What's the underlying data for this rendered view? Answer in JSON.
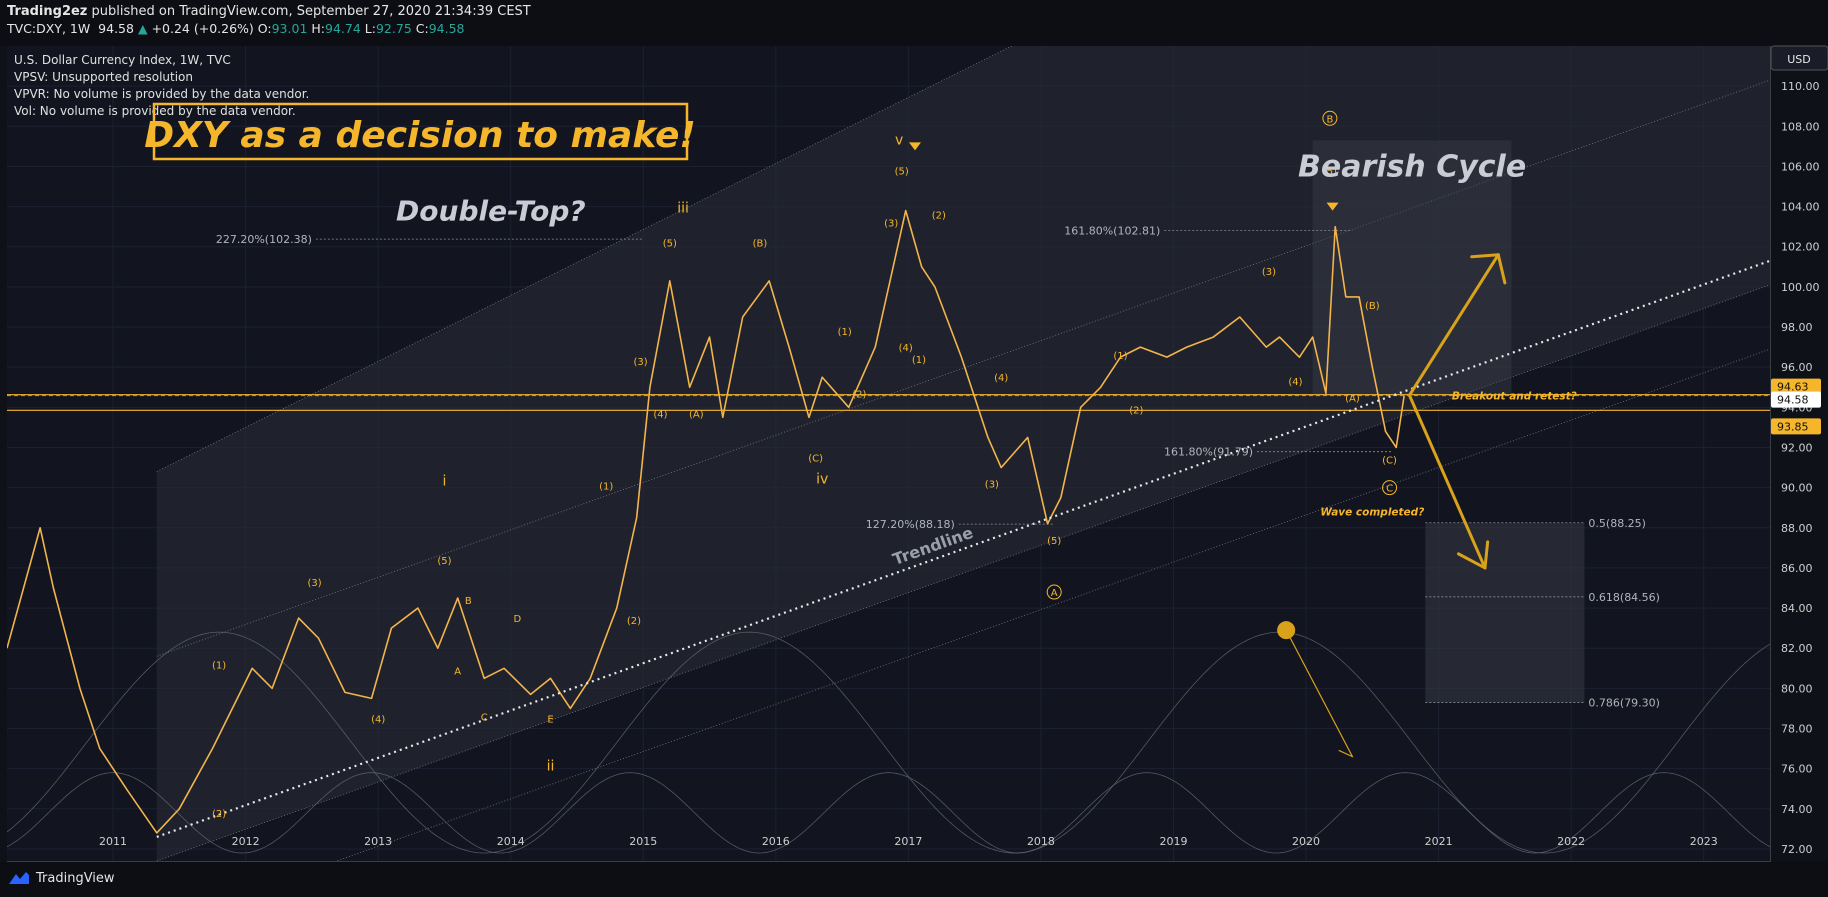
{
  "header": {
    "author": "Trading2ez",
    "published_text": "published on TradingView.com, September 27, 2020 21:34:39 CEST",
    "symbol_text": "TVC:DXY, 1W",
    "last_price": "94.58",
    "change": "+0.24 (+0.26%)",
    "o_label": "O:",
    "o_value": "93.01",
    "h_label": "H:",
    "h_value": "94.74",
    "l_label": "L:",
    "l_value": "92.75",
    "c_label": "C:",
    "c_value": "94.58"
  },
  "legend": {
    "line1": "U.S. Dollar Currency Index, 1W, TVC",
    "line2": "VPSV: Unsupported resolution",
    "line3": "VPVR: No volume is provided by the data vendor.",
    "line4": "Vol: No volume is provided by the data vendor."
  },
  "footer": {
    "brand": "TradingView"
  },
  "chart_data": {
    "type": "line",
    "title": "DXY as a decision to make!",
    "xlabel": "",
    "ylabel": "",
    "currency": "USD",
    "xlim": [
      2010.2,
      2023.5
    ],
    "ylim": [
      71.4,
      112.0
    ],
    "x_ticks": [
      "2011",
      "2012",
      "2013",
      "2014",
      "2015",
      "2016",
      "2017",
      "2018",
      "2019",
      "2020",
      "2021",
      "2022",
      "2023"
    ],
    "y_ticks": [
      "72.00",
      "74.00",
      "76.00",
      "78.00",
      "80.00",
      "82.00",
      "84.00",
      "86.00",
      "88.00",
      "90.00",
      "92.00",
      "94.00",
      "96.00",
      "98.00",
      "100.00",
      "102.00",
      "104.00",
      "106.00",
      "108.00",
      "110.00"
    ],
    "price_series": {
      "name": "DXY weekly",
      "x": [
        2010.2,
        2010.45,
        2010.55,
        2010.75,
        2010.9,
        2011.1,
        2011.33,
        2011.5,
        2011.75,
        2012.05,
        2012.2,
        2012.4,
        2012.55,
        2012.75,
        2012.95,
        2013.1,
        2013.3,
        2013.45,
        2013.6,
        2013.8,
        2013.95,
        2014.15,
        2014.3,
        2014.45,
        2014.6,
        2014.8,
        2014.95,
        2015.05,
        2015.2,
        2015.35,
        2015.5,
        2015.6,
        2015.75,
        2015.95,
        2016.1,
        2016.25,
        2016.35,
        2016.55,
        2016.75,
        2016.98,
        2017.1,
        2017.2,
        2017.4,
        2017.6,
        2017.7,
        2017.9,
        2018.05,
        2018.15,
        2018.3,
        2018.45,
        2018.6,
        2018.75,
        2018.95,
        2019.1,
        2019.3,
        2019.5,
        2019.7,
        2019.8,
        2019.95,
        2020.05,
        2020.15,
        2020.22,
        2020.3,
        2020.4,
        2020.5,
        2020.6,
        2020.68,
        2020.74
      ],
      "y": [
        82,
        88,
        85,
        80,
        77,
        75,
        72.8,
        74,
        77,
        81,
        80,
        83.5,
        82.5,
        79.8,
        79.5,
        83,
        84,
        82,
        84.5,
        80.5,
        81,
        79.7,
        80.5,
        79,
        80.5,
        84,
        88.5,
        95,
        100.3,
        95,
        97.5,
        93.5,
        98.5,
        100.3,
        97,
        93.5,
        95.5,
        94,
        97,
        103.8,
        101,
        100,
        96.5,
        92.5,
        91,
        92.5,
        88.2,
        89.5,
        94,
        95,
        96.5,
        97,
        96.5,
        97,
        97.5,
        98.5,
        97,
        97.5,
        96.5,
        97.5,
        94.7,
        103,
        99.5,
        99.5,
        96,
        92.8,
        92,
        94.58
      ]
    },
    "trendline": {
      "label": "Trendline",
      "x": [
        2011.33,
        2023.5
      ],
      "y": [
        72.6,
        101.3
      ]
    },
    "horizontal_levels": [
      {
        "name": "resistance",
        "value": 94.63,
        "label": "94.63"
      },
      {
        "name": "last",
        "value": 94.58,
        "label": "94.58"
      },
      {
        "name": "support",
        "value": 93.85,
        "label": "93.85"
      }
    ],
    "fib_levels": [
      {
        "label": "227.20%(102.38)",
        "value": 102.38
      },
      {
        "label": "161.80%(102.81)",
        "value": 102.81
      },
      {
        "label": "161.80%(91.79)",
        "value": 91.79
      },
      {
        "label": "127.20%(88.18)",
        "value": 88.18
      },
      {
        "label": "0.5(88.25)",
        "value": 88.25
      },
      {
        "label": "0.618(84.56)",
        "value": 84.56
      },
      {
        "label": "0.786(79.30)",
        "value": 79.3
      }
    ],
    "wave_labels": [
      {
        "text": "(1)",
        "x": 2011.8,
        "y": 81
      },
      {
        "text": "(2)",
        "x": 2011.8,
        "y": 73.6
      },
      {
        "text": "(3)",
        "x": 2012.52,
        "y": 85.1
      },
      {
        "text": "(4)",
        "x": 2013.0,
        "y": 78.3
      },
      {
        "text": "(5)",
        "x": 2013.5,
        "y": 86.2
      },
      {
        "text": "i",
        "x": 2013.5,
        "y": 90.1
      },
      {
        "text": "A",
        "x": 2013.6,
        "y": 80.7
      },
      {
        "text": "B",
        "x": 2013.68,
        "y": 84.2
      },
      {
        "text": "C",
        "x": 2013.8,
        "y": 78.4
      },
      {
        "text": "D",
        "x": 2014.05,
        "y": 83.3
      },
      {
        "text": "E",
        "x": 2014.3,
        "y": 78.3
      },
      {
        "text": "ii",
        "x": 2014.3,
        "y": 75.9
      },
      {
        "text": "(1)",
        "x": 2014.72,
        "y": 89.9
      },
      {
        "text": "(2)",
        "x": 2014.93,
        "y": 83.2
      },
      {
        "text": "(3)",
        "x": 2014.98,
        "y": 96.1
      },
      {
        "text": "(4)",
        "x": 2015.13,
        "y": 93.5
      },
      {
        "text": "(5)",
        "x": 2015.2,
        "y": 102.0
      },
      {
        "text": "iii",
        "x": 2015.3,
        "y": 103.7
      },
      {
        "text": "(A)",
        "x": 2015.4,
        "y": 93.5
      },
      {
        "text": "(B)",
        "x": 2015.88,
        "y": 102.0
      },
      {
        "text": "(C)",
        "x": 2016.3,
        "y": 91.3
      },
      {
        "text": "iv",
        "x": 2016.35,
        "y": 90.2
      },
      {
        "text": "(1)",
        "x": 2016.52,
        "y": 97.6
      },
      {
        "text": "(2)",
        "x": 2016.63,
        "y": 94.5
      },
      {
        "text": "(3)",
        "x": 2016.87,
        "y": 103.0
      },
      {
        "text": "(4)",
        "x": 2016.98,
        "y": 96.8
      },
      {
        "text": "(1)",
        "x": 2017.08,
        "y": 96.2
      },
      {
        "text": "(2)",
        "x": 2017.23,
        "y": 103.4
      },
      {
        "text": "(5)",
        "x": 2016.95,
        "y": 105.6
      },
      {
        "text": "v",
        "x": 2016.93,
        "y": 107.1
      },
      {
        "text": "(4)",
        "x": 2017.7,
        "y": 95.3
      },
      {
        "text": "(3)",
        "x": 2017.63,
        "y": 90.0
      },
      {
        "text": "(5)",
        "x": 2018.1,
        "y": 87.2
      },
      {
        "text": "(1)",
        "x": 2018.6,
        "y": 96.4
      },
      {
        "text": "(2)",
        "x": 2018.72,
        "y": 93.7
      },
      {
        "text": "(3)",
        "x": 2019.72,
        "y": 100.6
      },
      {
        "text": "(4)",
        "x": 2019.92,
        "y": 95.1
      },
      {
        "text": "(5)",
        "x": 2020.18,
        "y": 105.6
      },
      {
        "text": "(A)",
        "x": 2020.35,
        "y": 94.3
      },
      {
        "text": "(B)",
        "x": 2020.5,
        "y": 98.9
      },
      {
        "text": "(C)",
        "x": 2020.63,
        "y": 91.2
      }
    ],
    "circled_labels": [
      {
        "text": "A",
        "x": 2018.1,
        "y": 84.6
      },
      {
        "text": "B",
        "x": 2020.18,
        "y": 108.2
      },
      {
        "text": "C",
        "x": 2020.63,
        "y": 89.8
      }
    ],
    "annotations": [
      {
        "text": "Double-Top?",
        "x": 2013.85,
        "y": 103.3
      },
      {
        "text": "Bearish Cycle",
        "x": 2020.8,
        "y": 105.5
      },
      {
        "text": "Breakout and retest?",
        "x": 2021.1,
        "y": 94.4
      },
      {
        "text": "Wave completed?",
        "x": 2020.5,
        "y": 88.6
      }
    ]
  }
}
